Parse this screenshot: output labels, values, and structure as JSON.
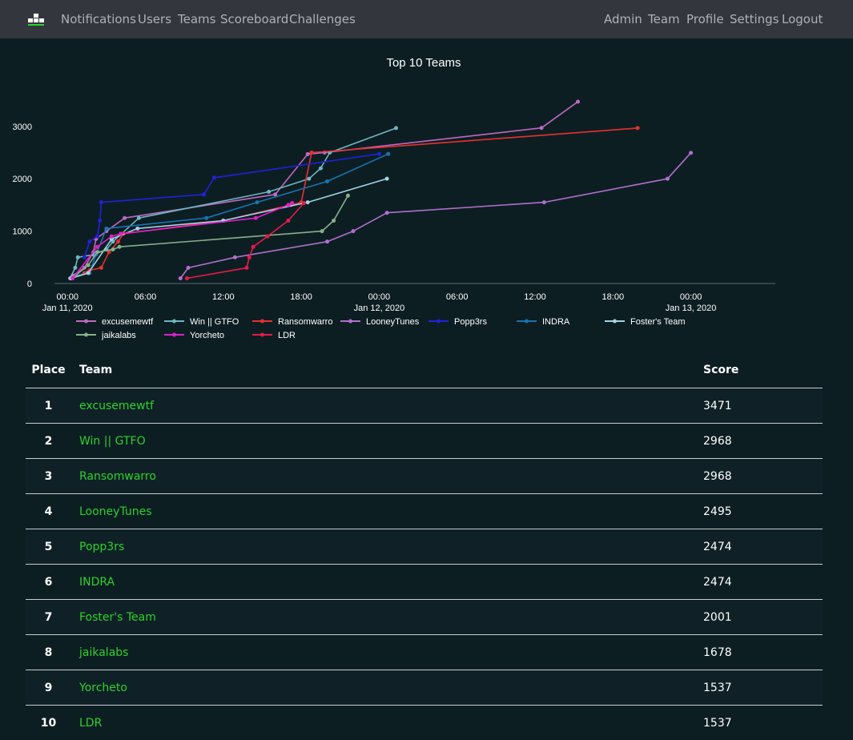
{
  "nav": {
    "left": [
      "Notifications",
      "Users",
      "Teams",
      "Scoreboard",
      "Challenges"
    ],
    "right": [
      "Admin",
      "Team",
      "Profile",
      "Settings",
      "Logout"
    ]
  },
  "chart_data": {
    "type": "line",
    "title": "Top 10 Teams",
    "xlabel": "",
    "ylabel": "",
    "x_unit": "hours since Jan 11, 2020 00:00",
    "xlim": [
      -1,
      54.5
    ],
    "ylim": [
      0,
      3700
    ],
    "x_ticks": [
      {
        "x": 0,
        "label": "00:00",
        "sub": "Jan 11, 2020"
      },
      {
        "x": 6,
        "label": "06:00",
        "sub": ""
      },
      {
        "x": 12,
        "label": "12:00",
        "sub": ""
      },
      {
        "x": 18,
        "label": "18:00",
        "sub": ""
      },
      {
        "x": 24,
        "label": "00:00",
        "sub": "Jan 12, 2020"
      },
      {
        "x": 30,
        "label": "06:00",
        "sub": ""
      },
      {
        "x": 36,
        "label": "12:00",
        "sub": ""
      },
      {
        "x": 42,
        "label": "18:00",
        "sub": ""
      },
      {
        "x": 48,
        "label": "00:00",
        "sub": "Jan 13, 2020"
      }
    ],
    "y_ticks": [
      0,
      1000,
      2000,
      3000
    ],
    "grid": false,
    "legend_position": "bottom",
    "series": [
      {
        "name": "excusemewtf",
        "color": "#c069c0",
        "points": [
          [
            0.4,
            150
          ],
          [
            1.3,
            300
          ],
          [
            2.0,
            600
          ],
          [
            2.2,
            850
          ],
          [
            3.0,
            1000
          ],
          [
            4.4,
            1250
          ],
          [
            16.0,
            1700
          ],
          [
            18.5,
            2470
          ],
          [
            19.8,
            2500
          ],
          [
            36.5,
            2970
          ],
          [
            39.3,
            3471
          ]
        ]
      },
      {
        "name": "Win || GTFO",
        "color": "#6fb6c2",
        "points": [
          [
            0.2,
            100
          ],
          [
            0.6,
            300
          ],
          [
            0.8,
            500
          ],
          [
            2.0,
            550
          ],
          [
            3.0,
            650
          ],
          [
            3.5,
            800
          ],
          [
            5.5,
            1250
          ],
          [
            15.5,
            1750
          ],
          [
            18.6,
            2000
          ],
          [
            19.5,
            2200
          ],
          [
            20.2,
            2500
          ],
          [
            25.3,
            2968
          ]
        ]
      },
      {
        "name": "Ransomwarro",
        "color": "#e8302e",
        "points": [
          [
            1.3,
            200
          ],
          [
            1.7,
            250
          ],
          [
            2.6,
            300
          ],
          [
            3.2,
            600
          ],
          [
            3.9,
            800
          ],
          [
            4.3,
            950
          ],
          [
            12.0,
            1200
          ],
          [
            17.2,
            1500
          ],
          [
            18.0,
            1550
          ],
          [
            18.8,
            2500
          ],
          [
            43.9,
            2968
          ]
        ]
      },
      {
        "name": "LooneyTunes",
        "color": "#b070cc",
        "points": [
          [
            8.7,
            100
          ],
          [
            9.3,
            300
          ],
          [
            12.9,
            500
          ],
          [
            20.0,
            800
          ],
          [
            22.0,
            1000
          ],
          [
            24.6,
            1350
          ],
          [
            36.7,
            1550
          ],
          [
            46.2,
            2000
          ],
          [
            48.0,
            2495
          ]
        ]
      },
      {
        "name": "Popp3rs",
        "color": "#2121d8",
        "points": [
          [
            1.3,
            500
          ],
          [
            1.7,
            800
          ],
          [
            2.3,
            900
          ],
          [
            2.5,
            1200
          ],
          [
            2.6,
            1550
          ],
          [
            10.5,
            1700
          ],
          [
            11.3,
            2020
          ],
          [
            24.0,
            2474
          ]
        ]
      },
      {
        "name": "INDRA",
        "color": "#1a73b0",
        "points": [
          [
            0.6,
            150
          ],
          [
            1.7,
            200
          ],
          [
            2.2,
            550
          ],
          [
            3.0,
            1050
          ],
          [
            10.7,
            1250
          ],
          [
            14.6,
            1550
          ],
          [
            20.0,
            1950
          ],
          [
            24.7,
            2474
          ]
        ]
      },
      {
        "name": "Foster's Team",
        "color": "#a3d3e6",
        "points": [
          [
            0.3,
            100
          ],
          [
            1.6,
            200
          ],
          [
            3.4,
            850
          ],
          [
            5.4,
            1050
          ],
          [
            12.0,
            1200
          ],
          [
            18.5,
            1550
          ],
          [
            24.6,
            2001
          ]
        ]
      },
      {
        "name": "jaikalabs",
        "color": "#86b08a",
        "points": [
          [
            0.6,
            150
          ],
          [
            1.6,
            350
          ],
          [
            2.3,
            600
          ],
          [
            3.5,
            650
          ],
          [
            4.0,
            700
          ],
          [
            19.6,
            1000
          ],
          [
            20.5,
            1200
          ],
          [
            21.6,
            1678
          ]
        ]
      },
      {
        "name": "Yorcheto",
        "color": "#e020c8",
        "points": [
          [
            0.4,
            100
          ],
          [
            2.3,
            700
          ],
          [
            3.4,
            900
          ],
          [
            4.1,
            950
          ],
          [
            14.5,
            1250
          ],
          [
            17.0,
            1500
          ],
          [
            17.3,
            1537
          ]
        ]
      },
      {
        "name": "LDR",
        "color": "#e81a4a",
        "points": [
          [
            9.2,
            100
          ],
          [
            13.8,
            300
          ],
          [
            14.0,
            500
          ],
          [
            14.3,
            700
          ],
          [
            15.4,
            900
          ],
          [
            17.0,
            1200
          ],
          [
            18.2,
            1537
          ]
        ]
      }
    ]
  },
  "table": {
    "headers": {
      "place": "Place",
      "team": "Team",
      "score": "Score"
    },
    "rows": [
      {
        "place": "1",
        "team": "excusemewtf",
        "score": "3471"
      },
      {
        "place": "2",
        "team": "Win || GTFO",
        "score": "2968"
      },
      {
        "place": "3",
        "team": "Ransomwarro",
        "score": "2968"
      },
      {
        "place": "4",
        "team": "LooneyTunes",
        "score": "2495"
      },
      {
        "place": "5",
        "team": "Popp3rs",
        "score": "2474"
      },
      {
        "place": "6",
        "team": "INDRA",
        "score": "2474"
      },
      {
        "place": "7",
        "team": "Foster's Team",
        "score": "2001"
      },
      {
        "place": "8",
        "team": "jaikalabs",
        "score": "1678"
      },
      {
        "place": "9",
        "team": "Yorcheto",
        "score": "1537"
      },
      {
        "place": "10",
        "team": "LDR",
        "score": "1537"
      }
    ]
  }
}
